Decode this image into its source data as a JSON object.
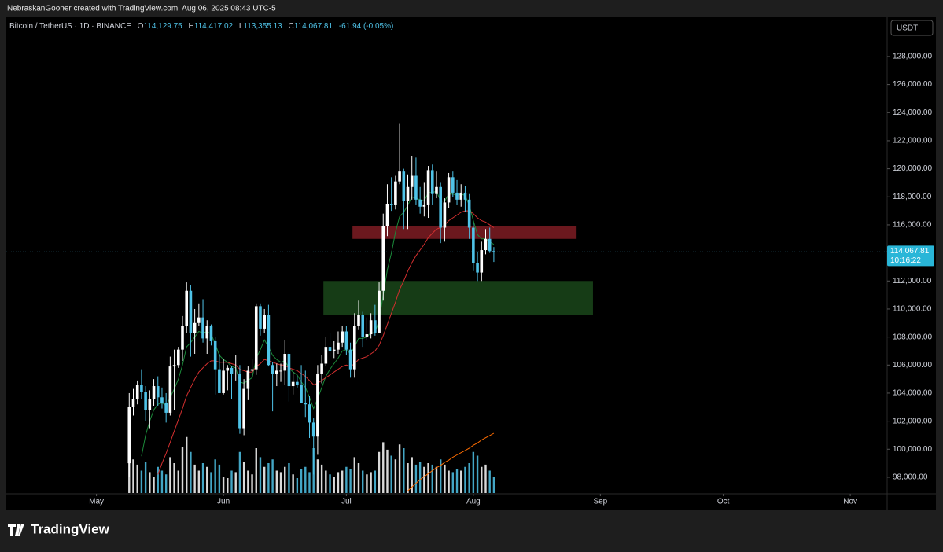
{
  "header": {
    "credit": "NebraskanGooner created with TradingView.com, Aug 06, 2025 08:43 UTC-5"
  },
  "footer": {
    "brand": "TradingView"
  },
  "chart_data": {
    "type": "candlestick",
    "symbol": "Bitcoin / TetherUS · 1D · BINANCE",
    "ohlc_keys": [
      "O",
      "H",
      "L",
      "C"
    ],
    "last_labels": [
      "114,129.75",
      "114,417.02",
      "113,355.13",
      "114,067.81"
    ],
    "change": "-61.94 (-0.05%)",
    "currency": "USDT",
    "countdown": "10:16:22",
    "up_color": "#ffffff",
    "down_color": "#4fc3e8",
    "candles": [
      [
        99000,
        104000,
        98000,
        103000
      ],
      [
        103000,
        104300,
        102400,
        103600
      ],
      [
        103600,
        104900,
        103200,
        104600
      ],
      [
        104600,
        105700,
        103600,
        104100
      ],
      [
        104100,
        104500,
        102000,
        102800
      ],
      [
        102800,
        104200,
        101500,
        103600
      ],
      [
        103600,
        105000,
        103100,
        104500
      ],
      [
        104500,
        105200,
        103100,
        103700
      ],
      [
        103700,
        104400,
        102900,
        103300
      ],
      [
        103300,
        104000,
        101900,
        102600
      ],
      [
        102600,
        106600,
        102400,
        105900
      ],
      [
        105900,
        107100,
        102800,
        106000
      ],
      [
        106000,
        107300,
        105800,
        107100
      ],
      [
        107100,
        109500,
        106300,
        108800
      ],
      [
        108800,
        111900,
        108300,
        111300
      ],
      [
        111300,
        111700,
        106600,
        108300
      ],
      [
        108300,
        110000,
        106800,
        109000
      ],
      [
        109000,
        110400,
        108800,
        109400
      ],
      [
        109400,
        110700,
        107600,
        107900
      ],
      [
        107900,
        109200,
        106800,
        108800
      ],
      [
        108800,
        108900,
        107400,
        107700
      ],
      [
        107700,
        108000,
        103900,
        105700
      ],
      [
        105700,
        106800,
        104000,
        104000
      ],
      [
        104000,
        106400,
        103900,
        105600
      ],
      [
        105600,
        106000,
        104200,
        105800
      ],
      [
        105800,
        105900,
        103600,
        105400
      ],
      [
        105400,
        106700,
        104900,
        105400
      ],
      [
        105400,
        106000,
        101100,
        101500
      ],
      [
        101500,
        105000,
        101000,
        104300
      ],
      [
        104300,
        105900,
        103500,
        105600
      ],
      [
        105600,
        106400,
        105100,
        105700
      ],
      [
        105700,
        110400,
        105300,
        110200
      ],
      [
        110200,
        110400,
        108100,
        108600
      ],
      [
        108600,
        110000,
        108300,
        109600
      ],
      [
        109600,
        110300,
        105900,
        106000
      ],
      [
        106000,
        106200,
        102700,
        105400
      ],
      [
        105400,
        106100,
        104500,
        105600
      ],
      [
        105600,
        106100,
        104800,
        105600
      ],
      [
        105600,
        107800,
        104600,
        106800
      ],
      [
        106800,
        106900,
        103400,
        104500
      ],
      [
        104500,
        105500,
        103900,
        104800
      ],
      [
        104800,
        105200,
        104400,
        104600
      ],
      [
        104600,
        106000,
        103500,
        103300
      ],
      [
        103300,
        105600,
        102300,
        103200
      ],
      [
        103200,
        103800,
        100800,
        101900
      ],
      [
        101900,
        102200,
        98200,
        100900
      ],
      [
        100900,
        106000,
        99600,
        105400
      ],
      [
        105400,
        106700,
        104700,
        106100
      ],
      [
        106100,
        108000,
        105900,
        107300
      ],
      [
        107300,
        108300,
        106600,
        107000
      ],
      [
        107000,
        107700,
        106500,
        107100
      ],
      [
        107100,
        108400,
        106800,
        107600
      ],
      [
        107600,
        108800,
        107300,
        108400
      ],
      [
        108400,
        108800,
        106700,
        107100
      ],
      [
        107100,
        107600,
        105100,
        105700
      ],
      [
        105700,
        109700,
        105100,
        108800
      ],
      [
        108800,
        110600,
        108500,
        109600
      ],
      [
        109600,
        109800,
        107300,
        108000
      ],
      [
        108000,
        109400,
        107800,
        108200
      ],
      [
        108200,
        109700,
        107900,
        109200
      ],
      [
        109200,
        110300,
        108100,
        108300
      ],
      [
        108300,
        111900,
        108300,
        111300
      ],
      [
        111300,
        116800,
        110600,
        115900
      ],
      [
        115900,
        118900,
        115200,
        117500
      ],
      [
        117500,
        119400,
        117000,
        117400
      ],
      [
        117400,
        119500,
        117100,
        119100
      ],
      [
        119100,
        123200,
        118900,
        119800
      ],
      [
        119800,
        120000,
        115700,
        117700
      ],
      [
        117700,
        119600,
        115700,
        118700
      ],
      [
        118700,
        120900,
        117800,
        119500
      ],
      [
        119500,
        120800,
        117400,
        117800
      ],
      [
        117800,
        118700,
        116800,
        117300
      ],
      [
        117300,
        119000,
        116600,
        117400
      ],
      [
        117400,
        120200,
        116500,
        119900
      ],
      [
        119900,
        120300,
        117400,
        118200
      ],
      [
        118200,
        119800,
        117900,
        118700
      ],
      [
        118700,
        119000,
        114700,
        115800
      ],
      [
        115800,
        117900,
        114800,
        117600
      ],
      [
        117600,
        119700,
        117200,
        119400
      ],
      [
        119400,
        119800,
        118000,
        118300
      ],
      [
        118300,
        119200,
        117400,
        117800
      ],
      [
        117800,
        118900,
        117300,
        118300
      ],
      [
        118300,
        118800,
        116900,
        117800
      ],
      [
        117800,
        118200,
        115000,
        115800
      ],
      [
        115800,
        116100,
        112700,
        113300
      ],
      [
        113300,
        114100,
        112000,
        112600
      ],
      [
        112600,
        114800,
        112000,
        114200
      ],
      [
        114200,
        115700,
        113900,
        115000
      ],
      [
        115000,
        115800,
        114000,
        114129.75
      ],
      [
        114129.75,
        114417.02,
        113355.13,
        114067.81
      ]
    ],
    "xlim": [
      -30,
      185
    ],
    "xticks": [
      {
        "value": -8,
        "label": "May"
      },
      {
        "value": 23,
        "label": "Jun"
      },
      {
        "value": 53,
        "label": "Jul"
      },
      {
        "value": 84,
        "label": "Aug"
      },
      {
        "value": 115,
        "label": "Sep"
      },
      {
        "value": 145,
        "label": "Oct"
      },
      {
        "value": 176,
        "label": "Nov"
      }
    ],
    "ylim": [
      96820,
      130800
    ],
    "yticks": [
      {
        "value": 98000,
        "label": "98,000.00"
      },
      {
        "value": 100000,
        "label": "100,000.00"
      },
      {
        "value": 102000,
        "label": "102,000.00"
      },
      {
        "value": 104000,
        "label": "104,000.00"
      },
      {
        "value": 106000,
        "label": "106,000.00"
      },
      {
        "value": 108000,
        "label": "108,000.00"
      },
      {
        "value": 110000,
        "label": "110,000.00"
      },
      {
        "value": 112000,
        "label": "112,000.00"
      },
      {
        "value": 114000,
        "label": "114,000.00"
      },
      {
        "value": 116000,
        "label": "116,000.00"
      },
      {
        "value": 118000,
        "label": "118,000.00"
      },
      {
        "value": 120000,
        "label": "120,000.00"
      },
      {
        "value": 122000,
        "label": "122,000.00"
      },
      {
        "value": 124000,
        "label": "124,000.00"
      },
      {
        "value": 126000,
        "label": "126,000.00"
      },
      {
        "value": 128000,
        "label": "128,000.00"
      }
    ],
    "moving_averages": [
      {
        "color": "#1b8a3a",
        "values": [
          null,
          null,
          null,
          99500,
          101000,
          102000,
          102800,
          103200,
          103300,
          103100,
          103700,
          104300,
          105000,
          106000,
          107300,
          107600,
          108000,
          108400,
          108300,
          108400,
          108200,
          107500,
          106700,
          106400,
          106200,
          105900,
          105800,
          104800,
          104700,
          104900,
          105100,
          106500,
          107100,
          107800,
          107300,
          106700,
          106400,
          106200,
          106300,
          105800,
          105500,
          105300,
          104800,
          104400,
          103700,
          102900,
          103600,
          104400,
          105200,
          105700,
          106100,
          106500,
          107000,
          107100,
          106800,
          107300,
          107900,
          107900,
          108000,
          108300,
          108300,
          109200,
          111000,
          112800,
          114000,
          115500,
          116600,
          116900,
          117400,
          118000,
          117900,
          117800,
          117700,
          118300,
          118300,
          118400,
          117700,
          117700,
          118200,
          118200,
          118100,
          118200,
          118100,
          117400,
          116300,
          115300,
          115000,
          115000,
          114800,
          114600
        ]
      },
      {
        "color": "#d32f2f",
        "values": [
          null,
          null,
          null,
          null,
          null,
          null,
          null,
          98200,
          99000,
          99700,
          100500,
          101300,
          102100,
          102900,
          103800,
          104400,
          105000,
          105500,
          105800,
          106100,
          106300,
          106300,
          106200,
          106200,
          106200,
          106100,
          106000,
          105700,
          105600,
          105500,
          105500,
          105900,
          106100,
          106400,
          106300,
          106200,
          106100,
          106000,
          106000,
          105800,
          105700,
          105600,
          105400,
          105200,
          104900,
          104600,
          104700,
          104900,
          105100,
          105300,
          105500,
          105700,
          105900,
          106000,
          105900,
          106100,
          106400,
          106500,
          106600,
          106800,
          107000,
          107400,
          108100,
          108900,
          109700,
          110500,
          111400,
          112000,
          112700,
          113300,
          113800,
          114200,
          114600,
          115100,
          115400,
          115700,
          115800,
          116000,
          116300,
          116500,
          116700,
          116900,
          117000,
          117000,
          116800,
          116500,
          116300,
          116200,
          116000,
          115800
        ]
      }
    ],
    "volume": {
      "ylim": [
        0,
        100
      ],
      "values": [
        100,
        45,
        38,
        30,
        42,
        28,
        22,
        35,
        30,
        25,
        48,
        40,
        30,
        62,
        75,
        55,
        38,
        30,
        40,
        35,
        28,
        45,
        38,
        22,
        20,
        30,
        28,
        55,
        42,
        30,
        25,
        60,
        48,
        35,
        40,
        45,
        30,
        28,
        35,
        40,
        25,
        20,
        32,
        35,
        28,
        60,
        45,
        38,
        30,
        25,
        22,
        28,
        30,
        35,
        32,
        48,
        40,
        30,
        25,
        28,
        30,
        55,
        68,
        58,
        50,
        45,
        65,
        60,
        40,
        48,
        38,
        42,
        35,
        40,
        38,
        35,
        45,
        38,
        30,
        28,
        32,
        30,
        35,
        40,
        55,
        50,
        35,
        38,
        30,
        22
      ],
      "ma": {
        "color": "#ff6d00",
        "values": [
          null,
          null,
          null,
          null,
          null,
          null,
          null,
          null,
          null,
          null,
          null,
          null,
          null,
          null,
          null,
          null,
          null,
          null,
          null,
          null,
          null,
          null,
          null,
          null,
          null,
          null,
          null,
          null,
          null,
          null,
          null,
          null,
          null,
          null,
          null,
          null,
          null,
          null,
          null,
          null,
          null,
          null,
          null,
          null,
          null,
          null,
          null,
          null,
          null,
          null,
          null,
          null,
          null,
          null,
          null,
          null,
          null,
          null,
          null,
          null,
          null,
          null,
          null,
          null,
          null,
          null,
          null,
          null,
          3,
          8,
          13,
          18,
          22,
          26,
          30,
          34,
          37,
          41,
          44,
          48,
          51,
          54,
          57,
          60,
          64,
          67,
          71,
          74,
          77,
          80
        ]
      }
    },
    "zones": [
      {
        "x": [
          54.5,
          109.2
        ],
        "y": [
          115000,
          115900
        ],
        "color": "rgba(178,40,50,0.6)"
      },
      {
        "x": [
          47.4,
          113.2
        ],
        "y": [
          109550,
          112000
        ],
        "color": "rgba(40,110,40,0.55)"
      }
    ],
    "price_line": true
  }
}
